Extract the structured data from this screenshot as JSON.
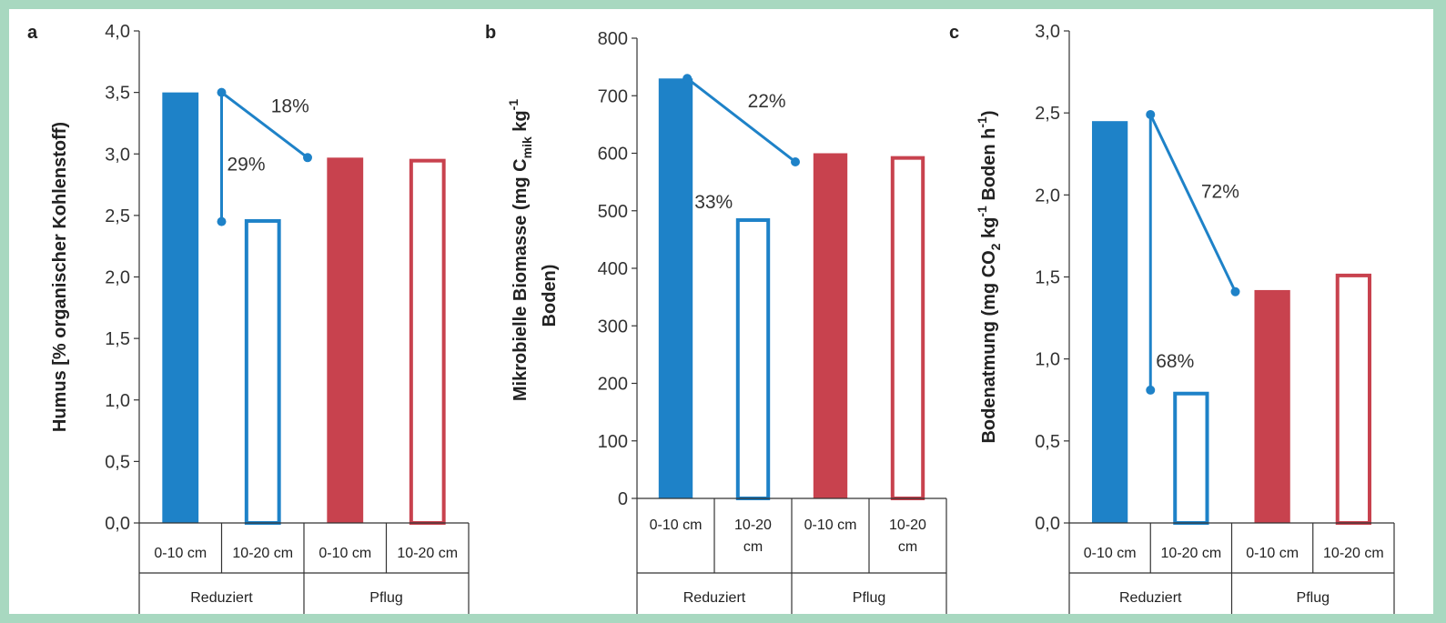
{
  "colors": {
    "reduziert": "#1e82c8",
    "pflug": "#c8424e",
    "frame": "#a8d8c0"
  },
  "chart_data": [
    {
      "panel_label": "a",
      "type": "bar",
      "ylabel": "Humus [% organischer Kohlenstoff)",
      "ylim": [
        0,
        4
      ],
      "yticks": [
        "0,0",
        "0,5",
        "1,0",
        "1,5",
        "2,0",
        "2,5",
        "3,0",
        "3,5",
        "4,0"
      ],
      "ytick_values": [
        0,
        0.5,
        1,
        1.5,
        2,
        2.5,
        3,
        3.5,
        4
      ],
      "groups": [
        "Reduziert",
        "Pflug"
      ],
      "categories": [
        "0-10 cm",
        "10-20 cm",
        "0-10 cm",
        "10-20 cm"
      ],
      "values": [
        3.5,
        2.47,
        2.97,
        2.96
      ],
      "annotations": [
        {
          "text": "18%",
          "from_y": 3.5,
          "to_y": 2.97,
          "kind": "diagonal"
        },
        {
          "text": "29%",
          "from_y": 3.5,
          "to_y": 2.45,
          "kind": "vertical"
        }
      ]
    },
    {
      "panel_label": "b",
      "type": "bar",
      "ylabel": "Mikrobielle Biomasse (mg C",
      "ylabel_sub": "mik",
      "ylabel_mid": " kg",
      "ylabel_sup": "-1",
      "ylabel_line2": "Boden)",
      "ylim": [
        0,
        800
      ],
      "yticks": [
        "0",
        "100",
        "200",
        "300",
        "400",
        "500",
        "600",
        "700",
        "800"
      ],
      "ytick_values": [
        0,
        100,
        200,
        300,
        400,
        500,
        600,
        700,
        800
      ],
      "groups": [
        "Reduziert",
        "Pflug"
      ],
      "categories": [
        "0-10 cm",
        "10-20 cm",
        "0-10 cm",
        "10-20 cm"
      ],
      "values": [
        730,
        487,
        600,
        595
      ],
      "annotations": [
        {
          "text": "22%",
          "from_y": 730,
          "to_y": 585,
          "kind": "diagonal"
        },
        {
          "text": "33%",
          "kind": "label_only",
          "y": 520
        }
      ]
    },
    {
      "panel_label": "c",
      "type": "bar",
      "ylabel": "Bodenatmung (mg CO",
      "ylabel_sub": "2",
      "ylabel_mid": " kg",
      "ylabel_sup": "-1",
      "ylabel_tail": " Boden h",
      "ylabel_sup2": "-1",
      "ylabel_end": ")",
      "ylim": [
        0,
        3
      ],
      "yticks": [
        "0,0",
        "0,5",
        "1,0",
        "1,5",
        "2,0",
        "2,5",
        "3,0"
      ],
      "ytick_values": [
        0,
        0.5,
        1,
        1.5,
        2,
        2.5,
        3
      ],
      "groups": [
        "Reduziert",
        "Pflug"
      ],
      "categories": [
        "0-10 cm",
        "10-20 cm",
        "0-10 cm",
        "10-20 cm"
      ],
      "values": [
        2.45,
        0.8,
        1.42,
        1.52
      ],
      "annotations": [
        {
          "text": "72%",
          "from_y": 2.49,
          "to_y": 1.41,
          "kind": "diagonal"
        },
        {
          "text": "68%",
          "from_y": 2.49,
          "to_y": 0.81,
          "kind": "vertical"
        }
      ]
    }
  ]
}
